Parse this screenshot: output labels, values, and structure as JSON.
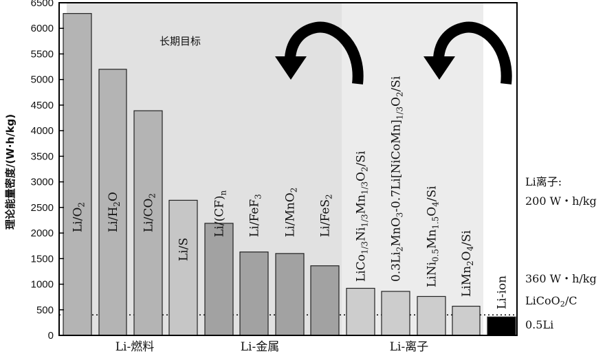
{
  "chart_data": {
    "type": "bar",
    "ylabel": "理论能量密度/(W·h/kg)",
    "ylim": [
      0,
      6500
    ],
    "yticks": [
      0,
      500,
      1000,
      1500,
      2000,
      2500,
      3000,
      3500,
      4000,
      4500,
      5000,
      5500,
      6000,
      6500
    ],
    "reference_line": 400,
    "region_title": "长期目标",
    "groups": [
      "Li-燃料",
      "Li-金属",
      "Li-离子"
    ],
    "bars": [
      {
        "label": "Li/O2",
        "value": 6290,
        "group": "Li-燃料",
        "color": "#b4b4b4"
      },
      {
        "label": "Li/H2O",
        "value": 5200,
        "group": "Li-燃料",
        "color": "#b4b4b4"
      },
      {
        "label": "Li/CO2",
        "value": 4390,
        "group": "Li-燃料",
        "color": "#b4b4b4"
      },
      {
        "label": "Li/S",
        "value": 2640,
        "group": "Li-金属",
        "color": "#c6c6c6"
      },
      {
        "label": "Li/(CF)n",
        "value": 2190,
        "group": "Li-金属",
        "color": "#a2a2a2"
      },
      {
        "label": "Li/FeF3",
        "value": 1630,
        "group": "Li-金属",
        "color": "#a2a2a2"
      },
      {
        "label": "Li/MnO2",
        "value": 1600,
        "group": "Li-金属",
        "color": "#a2a2a2"
      },
      {
        "label": "Li/FeS2",
        "value": 1360,
        "group": "Li-金属",
        "color": "#a2a2a2"
      },
      {
        "label": "LiCo1/3Ni1/3Mn1/3O2/Si",
        "value": 920,
        "group": "Li-离子",
        "color": "#cdcdcd"
      },
      {
        "label": "0.3Li2MnO3-0.7Li[NiCoMn]1/3O2/Si",
        "value": 860,
        "group": "Li-离子",
        "color": "#cdcdcd"
      },
      {
        "label": "LiNi0.5Mn1.5O4/Si",
        "value": 760,
        "group": "Li-离子",
        "color": "#cdcdcd"
      },
      {
        "label": "LiMn2O4/Si",
        "value": 570,
        "group": "Li-离子",
        "color": "#cdcdcd"
      },
      {
        "label": "Li-ion",
        "value": 360,
        "group": "Li-离子",
        "color": "#000000"
      }
    ],
    "side_labels": {
      "title": "Li离子:",
      "practical": "200 W・h/kg",
      "theoretical": "360 W・h/kg",
      "cell": "LiCoO2/C",
      "li_amount": "0.5Li"
    }
  }
}
